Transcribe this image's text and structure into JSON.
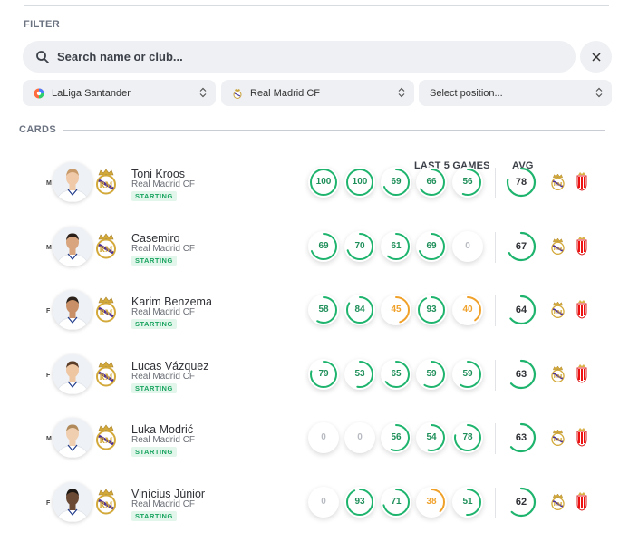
{
  "filter": {
    "label": "FILTER",
    "search_placeholder": "Search name or club...",
    "league": "LaLiga Santander",
    "club": "Real Madrid CF",
    "position_placeholder": "Select position..."
  },
  "cards": {
    "label": "CARDS",
    "last5_header": "LAST 5 GAMES",
    "avg_header": "AVG",
    "players": [
      {
        "name": "Toni Kroos",
        "club": "Real Madrid CF",
        "position": "M",
        "status": "STARTING",
        "last5": [
          100,
          100,
          69,
          66,
          56
        ],
        "avg": 78
      },
      {
        "name": "Casemiro",
        "club": "Real Madrid CF",
        "position": "M",
        "status": "STARTING",
        "last5": [
          69,
          70,
          61,
          69,
          0
        ],
        "avg": 67
      },
      {
        "name": "Karim Benzema",
        "club": "Real Madrid CF",
        "position": "F",
        "status": "STARTING",
        "last5": [
          58,
          84,
          45,
          93,
          40
        ],
        "avg": 64
      },
      {
        "name": "Lucas Vázquez",
        "club": "Real Madrid CF",
        "position": "F",
        "status": "STARTING",
        "last5": [
          79,
          53,
          65,
          59,
          59
        ],
        "avg": 63
      },
      {
        "name": "Luka Modrić",
        "club": "Real Madrid CF",
        "position": "M",
        "status": "STARTING",
        "last5": [
          0,
          0,
          56,
          54,
          78
        ],
        "avg": 63
      },
      {
        "name": "Vinícius Júnior",
        "club": "Real Madrid CF",
        "position": "F",
        "status": "STARTING",
        "last5": [
          0,
          93,
          71,
          38,
          51
        ],
        "avg": 62
      }
    ]
  },
  "colors": {
    "good": "#1fb46e",
    "warn": "#f0a12a",
    "zero": "#c6c9ce",
    "track": "#e9ebee"
  },
  "icons": {
    "search": "search-icon",
    "clear": "close-icon",
    "league": "laliga-logo-icon",
    "club": "real-madrid-crest-icon",
    "chevron": "chevron-up-down-icon",
    "opponent": "granada-crest-icon"
  }
}
